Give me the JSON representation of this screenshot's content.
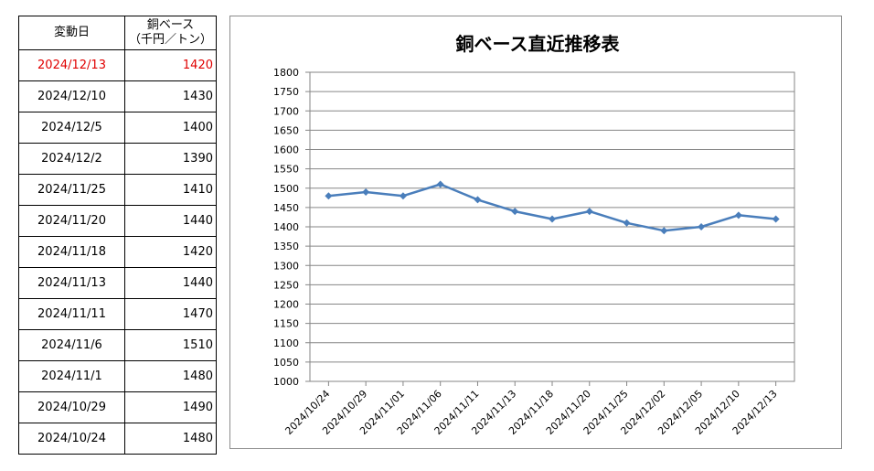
{
  "table": {
    "header": {
      "date": "変動日",
      "price_line1": "銅ベース",
      "price_line2": "（千円／トン）"
    },
    "rows": [
      {
        "date": "2024/12/13",
        "value": "1420",
        "highlight": true
      },
      {
        "date": "2024/12/10",
        "value": "1430"
      },
      {
        "date": "2024/12/5",
        "value": "1400"
      },
      {
        "date": "2024/12/2",
        "value": "1390"
      },
      {
        "date": "2024/11/25",
        "value": "1410"
      },
      {
        "date": "2024/11/20",
        "value": "1440"
      },
      {
        "date": "2024/11/18",
        "value": "1420"
      },
      {
        "date": "2024/11/13",
        "value": "1440"
      },
      {
        "date": "2024/11/11",
        "value": "1470"
      },
      {
        "date": "2024/11/6",
        "value": "1510"
      },
      {
        "date": "2024/11/1",
        "value": "1480"
      },
      {
        "date": "2024/10/29",
        "value": "1490"
      },
      {
        "date": "2024/10/24",
        "value": "1480"
      }
    ],
    "highlight_color": "#e00000"
  },
  "chart_data": {
    "type": "line",
    "title": "銅ベース直近推移表",
    "categories": [
      "2024/10/24",
      "2024/10/29",
      "2024/11/01",
      "2024/11/06",
      "2024/11/11",
      "2024/11/13",
      "2024/11/18",
      "2024/11/20",
      "2024/11/25",
      "2024/12/02",
      "2024/12/05",
      "2024/12/10",
      "2024/12/13"
    ],
    "series": [
      {
        "values": [
          1480,
          1490,
          1480,
          1510,
          1470,
          1440,
          1420,
          1440,
          1410,
          1390,
          1400,
          1430,
          1420
        ]
      }
    ],
    "ylim": [
      1000,
      1800
    ],
    "ytick_step": 50,
    "grid": true,
    "line_color": "#4a7ebb",
    "xlabel": "",
    "ylabel": ""
  }
}
